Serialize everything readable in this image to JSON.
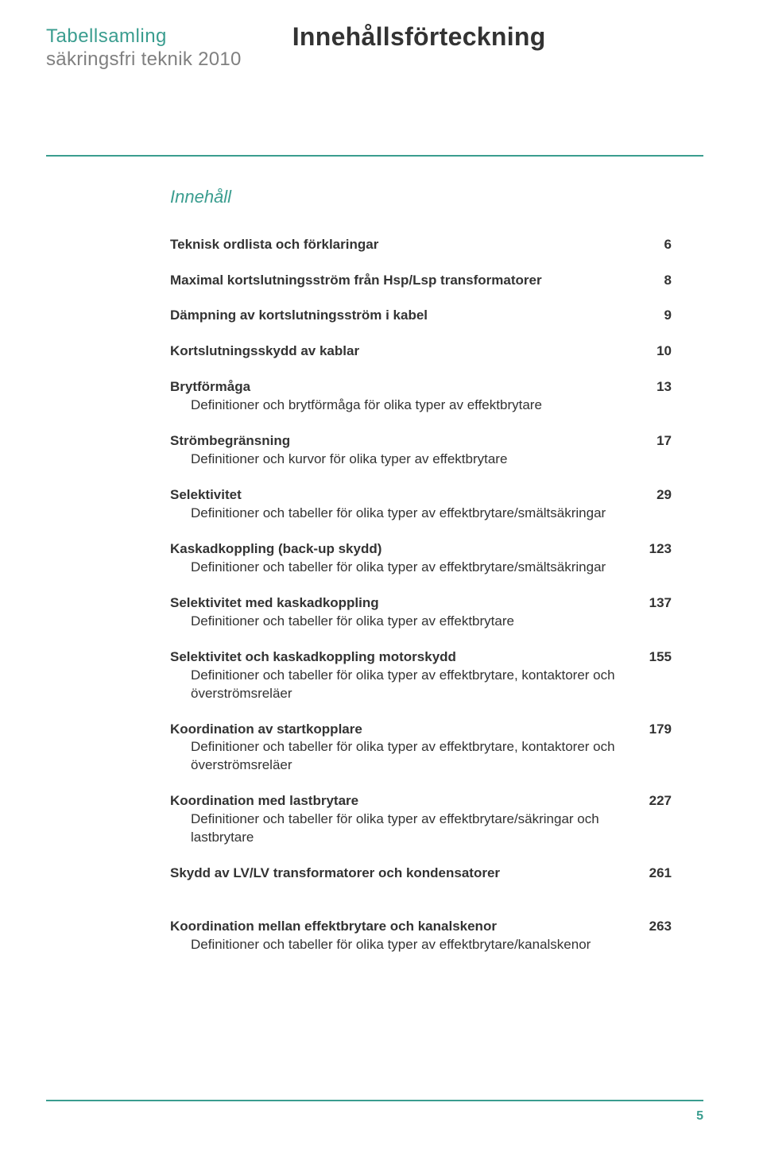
{
  "header": {
    "title_line_1": "Tabellsamling",
    "title_line_2": "säkringsfri teknik 2010",
    "main_title": "Innehållsförteckning"
  },
  "section_header": "Innehåll",
  "toc": [
    {
      "title": "Teknisk ordlista och förklaringar",
      "desc": "",
      "page": "6"
    },
    {
      "title": "Maximal kortslutningsström från Hsp/Lsp transformatorer",
      "desc": "",
      "page": "8"
    },
    {
      "title": "Dämpning av kortslutningsström i kabel",
      "desc": "",
      "page": "9"
    },
    {
      "title": "Kortslutningsskydd av kablar",
      "desc": "",
      "page": "10"
    },
    {
      "title": "Brytförmåga",
      "desc": "Definitioner och brytförmåga för olika typer av effektbrytare",
      "page": "13"
    },
    {
      "title": "Strömbegränsning",
      "desc": "Definitioner och kurvor för olika typer av effektbrytare",
      "page": "17"
    },
    {
      "title": "Selektivitet",
      "desc": "Definitioner och tabeller för olika typer av effektbrytare/smältsäkringar",
      "page": "29"
    },
    {
      "title": "Kaskadkoppling (back-up skydd)",
      "desc": "Definitioner och tabeller för olika typer av effektbrytare/smältsäkringar",
      "page": "123"
    },
    {
      "title": "Selektivitet med kaskadkoppling",
      "desc": "Definitioner och tabeller för olika typer av effektbrytare",
      "page": "137"
    },
    {
      "title": "Selektivitet och kaskadkoppling motorskydd",
      "desc": "Definitioner och tabeller för olika typer av effektbrytare, kontaktorer och överströmsreläer",
      "page": "155"
    },
    {
      "title": "Koordination av startkopplare",
      "desc": "Definitioner och tabeller för olika typer av effektbrytare, kontaktorer och överströmsreläer",
      "page": "179"
    },
    {
      "title": "Koordination med lastbrytare",
      "desc": "Definitioner och tabeller för olika typer av effektbrytare/säkringar och lastbrytare",
      "page": "227"
    },
    {
      "title": "Skydd av LV/LV transformatorer och kondensatorer",
      "desc": "",
      "page": "261"
    },
    {
      "title": "Koordination mellan effektbrytare och kanalskenor",
      "desc": "Definitioner och tabeller för olika typer av effektbrytare/kanalskenor",
      "page": "263"
    }
  ],
  "footer_page": "5",
  "colors": {
    "accent": "#3a9d8f",
    "gray": "#808080",
    "text": "#333333",
    "background": "#ffffff"
  }
}
